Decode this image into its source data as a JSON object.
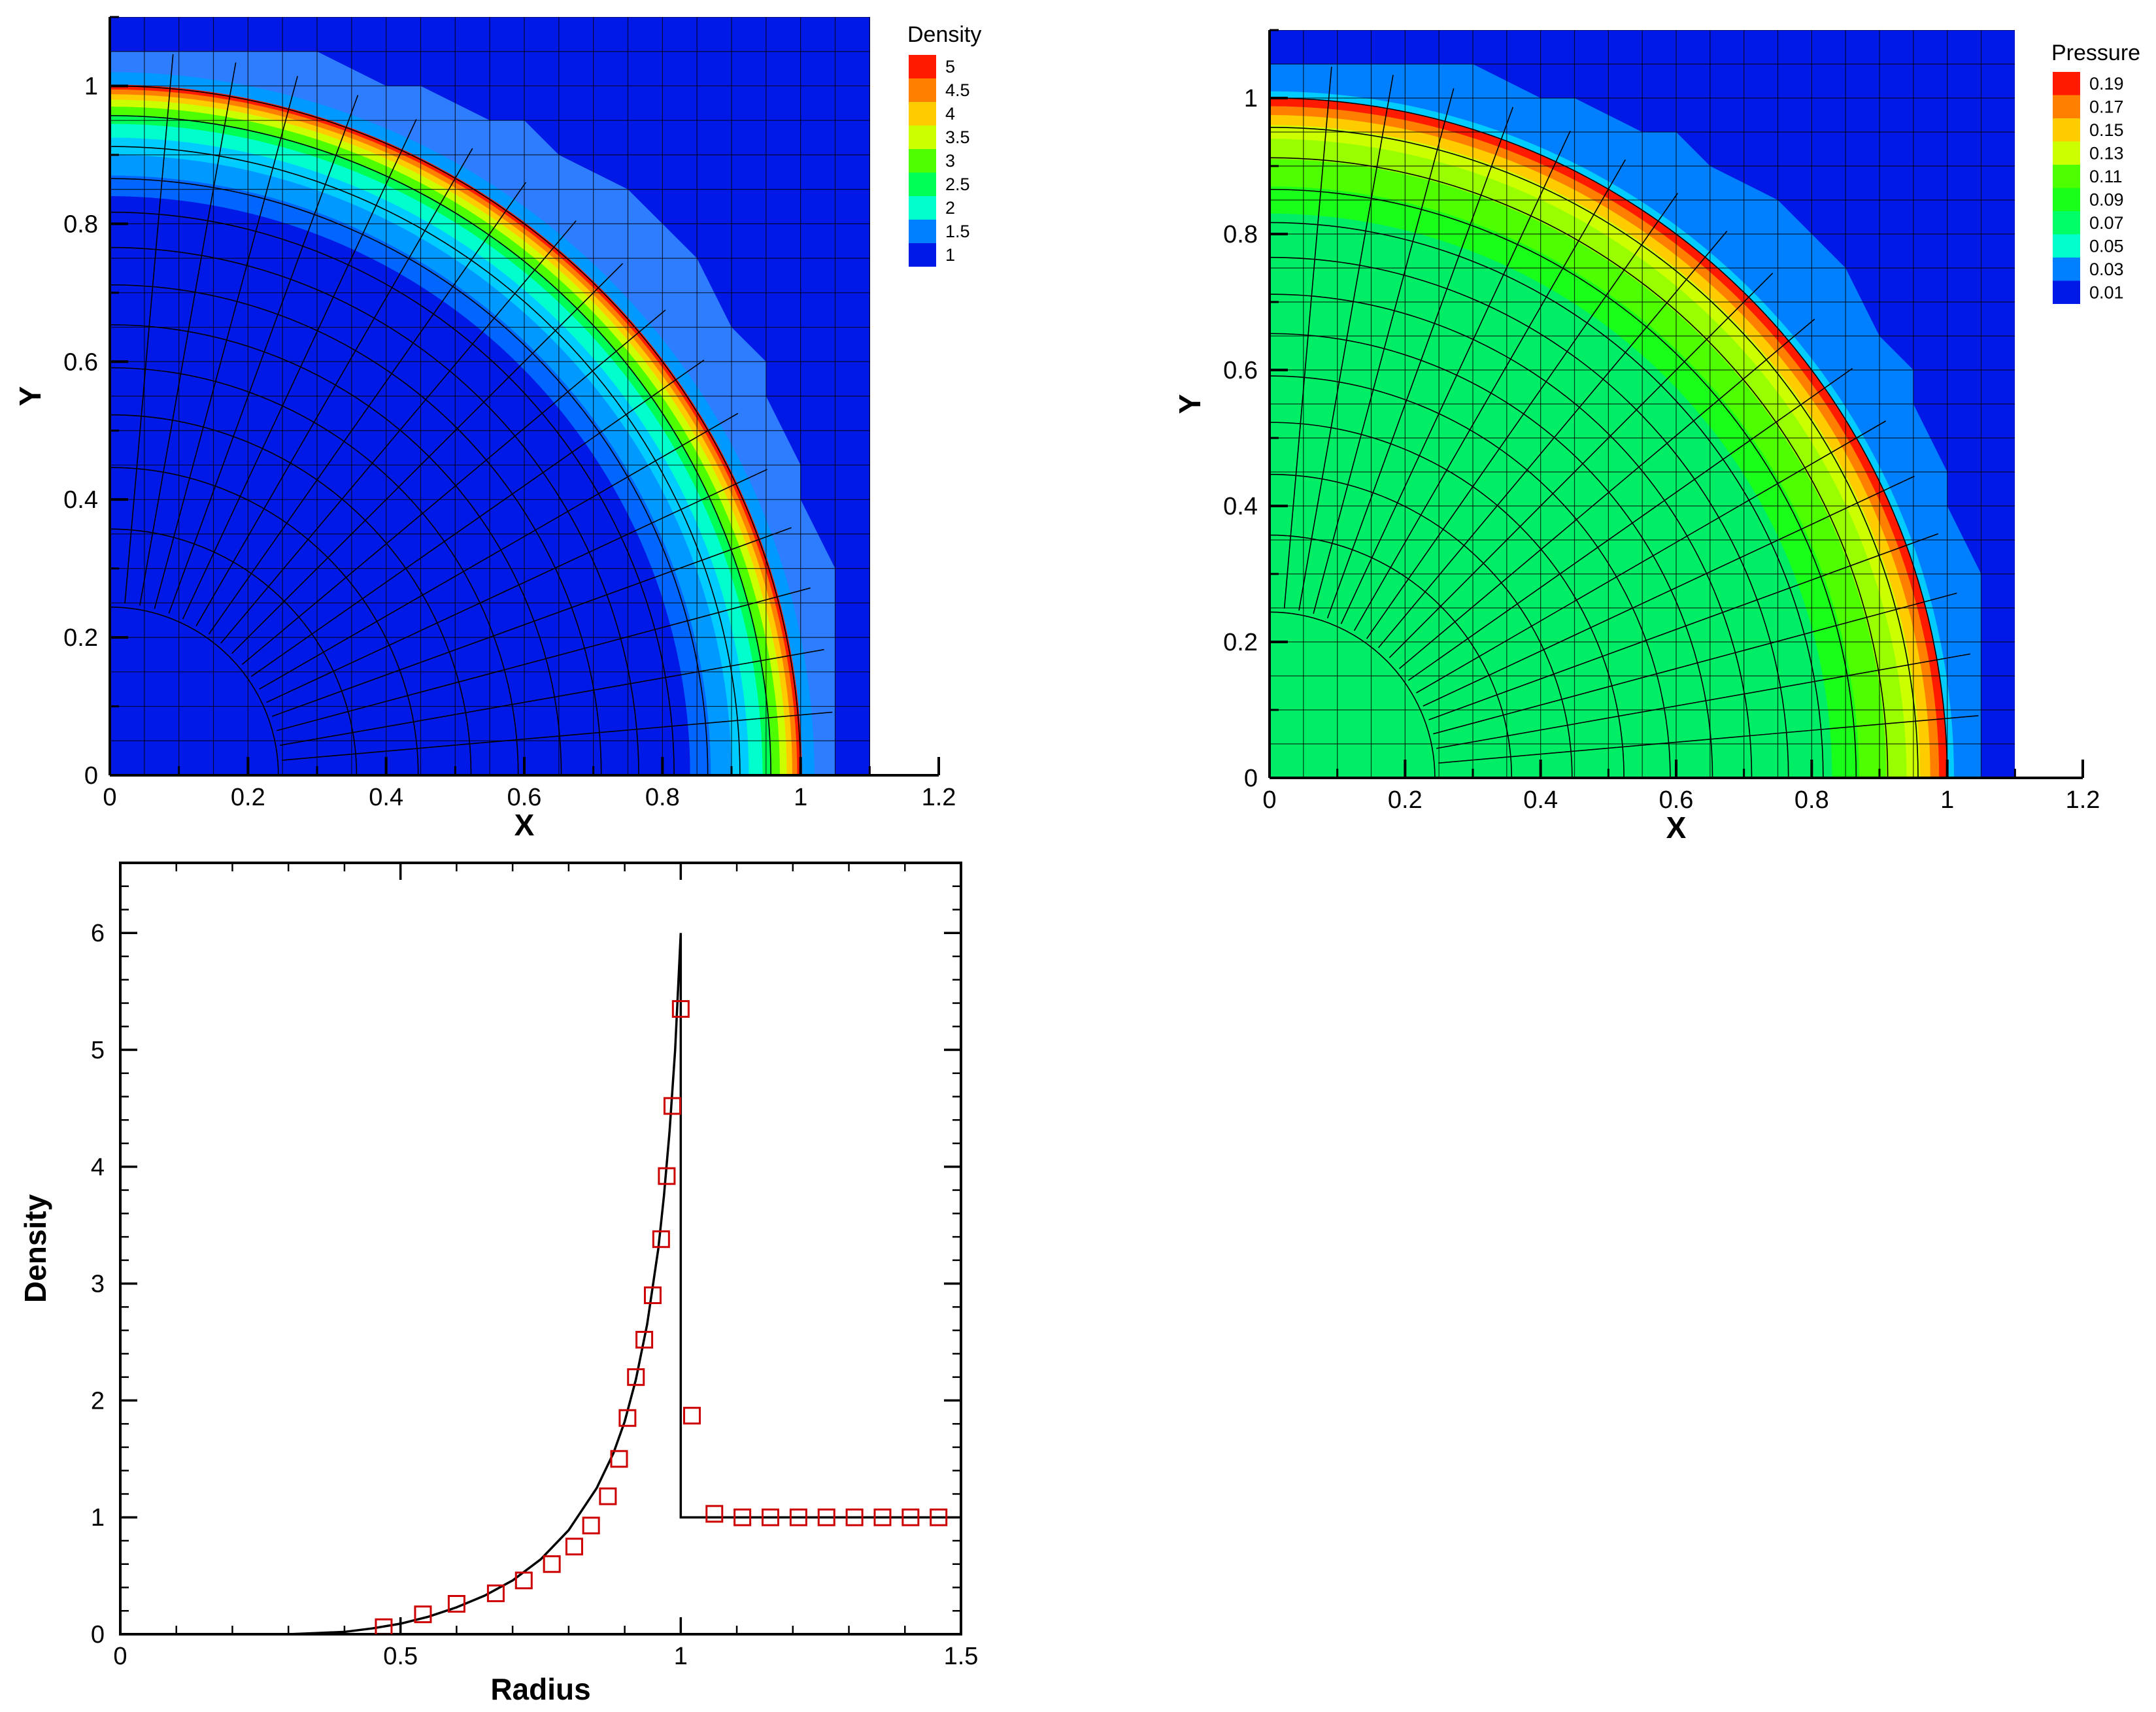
{
  "colors": {
    "background_low": "#0019e6",
    "frame": "#000000",
    "mesh": "#000000",
    "marker": "#cc0000",
    "curve": "#000000"
  },
  "chart_data": [
    {
      "id": "density-contour",
      "type": "heatmap",
      "xlabel": "X",
      "ylabel": "Y",
      "xlim": [
        0,
        1.2
      ],
      "ylim": [
        0,
        1.1
      ],
      "xticks": [
        "0",
        "0.2",
        "0.4",
        "0.6",
        "0.8",
        "1",
        "1.2"
      ],
      "yticks": [
        "0",
        "0.2",
        "0.4",
        "0.6",
        "0.8",
        "1"
      ],
      "legend": {
        "title": "Density",
        "placement": "top-right",
        "levels": [
          {
            "label": "5",
            "color": "#ff1a00"
          },
          {
            "label": "4.5",
            "color": "#ff8000"
          },
          {
            "label": "4",
            "color": "#ffcc00"
          },
          {
            "label": "3.5",
            "color": "#ccff00"
          },
          {
            "label": "3",
            "color": "#4dff00"
          },
          {
            "label": "2.5",
            "color": "#00ff55"
          },
          {
            "label": "2",
            "color": "#00ffcc"
          },
          {
            "label": "1.5",
            "color": "#0080ff"
          },
          {
            "label": "1",
            "color": "#0019e6"
          }
        ]
      },
      "bands": [
        {
          "r_in": 0.0,
          "r_out": 0.84,
          "color": "#0019e6"
        },
        {
          "r_in": 0.84,
          "r_out": 0.87,
          "color": "#0066ff"
        },
        {
          "r_in": 0.87,
          "r_out": 0.9,
          "color": "#0099ff"
        },
        {
          "r_in": 0.9,
          "r_out": 0.925,
          "color": "#00ccff"
        },
        {
          "r_in": 0.925,
          "r_out": 0.945,
          "color": "#00ffcc"
        },
        {
          "r_in": 0.945,
          "r_out": 0.958,
          "color": "#00ff55"
        },
        {
          "r_in": 0.958,
          "r_out": 0.97,
          "color": "#4dff00"
        },
        {
          "r_in": 0.97,
          "r_out": 0.98,
          "color": "#ccff00"
        },
        {
          "r_in": 0.98,
          "r_out": 0.988,
          "color": "#ffcc00"
        },
        {
          "r_in": 0.988,
          "r_out": 0.995,
          "color": "#ff8000"
        },
        {
          "r_in": 0.995,
          "r_out": 1.002,
          "color": "#ff1a00"
        },
        {
          "r_in": 1.002,
          "r_out": 1.02,
          "color": "#0099ff"
        }
      ],
      "shocked_halo_color": "#2f7dff"
    },
    {
      "id": "pressure-contour",
      "type": "heatmap",
      "xlabel": "X",
      "ylabel": "Y",
      "xlim": [
        0,
        1.2
      ],
      "ylim": [
        0,
        1.1
      ],
      "xticks": [
        "0",
        "0.2",
        "0.4",
        "0.6",
        "0.8",
        "1",
        "1.2"
      ],
      "yticks": [
        "0",
        "0.2",
        "0.4",
        "0.6",
        "0.8",
        "1"
      ],
      "legend": {
        "title": "Pressure",
        "placement": "top-right",
        "levels": [
          {
            "label": "0.19",
            "color": "#ff1a00"
          },
          {
            "label": "0.17",
            "color": "#ff8000"
          },
          {
            "label": "0.15",
            "color": "#ffcc00"
          },
          {
            "label": "0.13",
            "color": "#ccff00"
          },
          {
            "label": "0.11",
            "color": "#4dff00"
          },
          {
            "label": "0.09",
            "color": "#1aff1a"
          },
          {
            "label": "0.07",
            "color": "#00ff66"
          },
          {
            "label": "0.05",
            "color": "#00ffcc"
          },
          {
            "label": "0.03",
            "color": "#0080ff"
          },
          {
            "label": "0.01",
            "color": "#0019e6"
          }
        ]
      },
      "bands": [
        {
          "r_in": 0.0,
          "r_out": 0.83,
          "color": "#00ee66"
        },
        {
          "r_in": 0.83,
          "r_out": 0.87,
          "color": "#1aff1a"
        },
        {
          "r_in": 0.87,
          "r_out": 0.91,
          "color": "#4dff00"
        },
        {
          "r_in": 0.91,
          "r_out": 0.94,
          "color": "#99ff00"
        },
        {
          "r_in": 0.94,
          "r_out": 0.96,
          "color": "#ccff00"
        },
        {
          "r_in": 0.96,
          "r_out": 0.975,
          "color": "#ffcc00"
        },
        {
          "r_in": 0.975,
          "r_out": 0.988,
          "color": "#ff8000"
        },
        {
          "r_in": 0.988,
          "r_out": 1.0,
          "color": "#ff1a00"
        },
        {
          "r_in": 1.0,
          "r_out": 1.01,
          "color": "#00ccff"
        },
        {
          "r_in": 1.01,
          "r_out": 1.025,
          "color": "#0080ff"
        }
      ],
      "shocked_halo_color": "#0080ff"
    },
    {
      "id": "density-radius-plot",
      "type": "line",
      "xlabel": "Radius",
      "ylabel": "Density",
      "xlim": [
        0,
        1.5
      ],
      "ylim": [
        0,
        6.6
      ],
      "xticks": [
        "0",
        "0.5",
        "1",
        "1.5"
      ],
      "yticks": [
        "0",
        "1",
        "2",
        "3",
        "4",
        "5",
        "6"
      ],
      "series": [
        {
          "kind": "exact-line",
          "x": [
            0.0,
            0.3,
            0.35,
            0.4,
            0.45,
            0.5,
            0.55,
            0.6,
            0.65,
            0.7,
            0.75,
            0.8,
            0.85,
            0.88,
            0.9,
            0.92,
            0.94,
            0.96,
            0.97,
            0.98,
            0.99,
            1.0,
            1.0,
            1.5
          ],
          "y": [
            0.0,
            0.0,
            0.01,
            0.02,
            0.05,
            0.09,
            0.15,
            0.23,
            0.33,
            0.46,
            0.64,
            0.89,
            1.25,
            1.55,
            1.82,
            2.18,
            2.65,
            3.3,
            3.75,
            4.3,
            5.0,
            6.0,
            1.0,
            1.0
          ]
        },
        {
          "kind": "numerical-markers",
          "x": [
            0.47,
            0.54,
            0.6,
            0.67,
            0.72,
            0.77,
            0.81,
            0.84,
            0.87,
            0.89,
            0.905,
            0.92,
            0.935,
            0.95,
            0.965,
            0.975,
            0.985,
            1.0,
            1.02,
            1.06,
            1.11,
            1.16,
            1.21,
            1.26,
            1.31,
            1.36,
            1.41,
            1.46
          ],
          "y": [
            0.06,
            0.17,
            0.26,
            0.35,
            0.46,
            0.6,
            0.75,
            0.93,
            1.18,
            1.5,
            1.85,
            2.2,
            2.52,
            2.9,
            3.38,
            3.92,
            4.52,
            5.35,
            1.87,
            1.03,
            1.0,
            1.0,
            1.0,
            1.0,
            1.0,
            1.0,
            1.0,
            1.0
          ]
        }
      ]
    }
  ]
}
